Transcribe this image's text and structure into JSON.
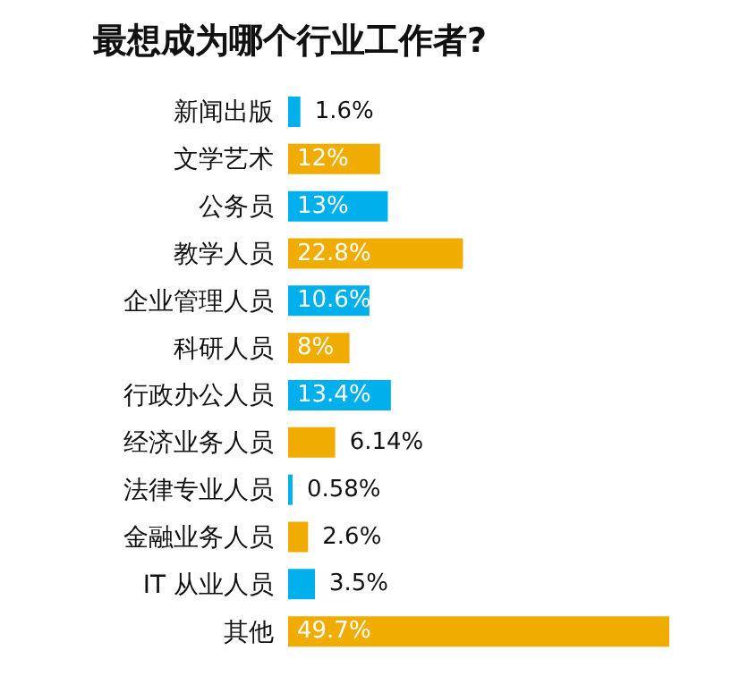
{
  "chart_data": {
    "type": "bar",
    "orientation": "horizontal",
    "title": "最想成为哪个行业工作者?",
    "categories": [
      "新闻出版",
      "文学艺术",
      "公务员",
      "教学人员",
      "企业管理人员",
      "科研人员",
      "行政办公人员",
      "经济业务人员",
      "法律专业人员",
      "金融业务人员",
      "IT 从业人员",
      "其他"
    ],
    "values": [
      1.6,
      12,
      13,
      22.8,
      10.6,
      8,
      13.4,
      6.14,
      0.58,
      2.6,
      3.5,
      49.7
    ],
    "value_labels": [
      "1.6%",
      "12%",
      "13%",
      "22.8%",
      "10.6%",
      "8%",
      "13.4%",
      "6.14%",
      "0.58%",
      "2.6%",
      "3.5%",
      "49.7%"
    ],
    "colors": [
      "#00b0ec",
      "#f0ad00",
      "#00b0ec",
      "#f0ad00",
      "#00b0ec",
      "#f0ad00",
      "#00b0ec",
      "#f0ad00",
      "#00b0ec",
      "#f0ad00",
      "#00b0ec",
      "#f0ad00"
    ],
    "grid": false,
    "legend": false
  }
}
